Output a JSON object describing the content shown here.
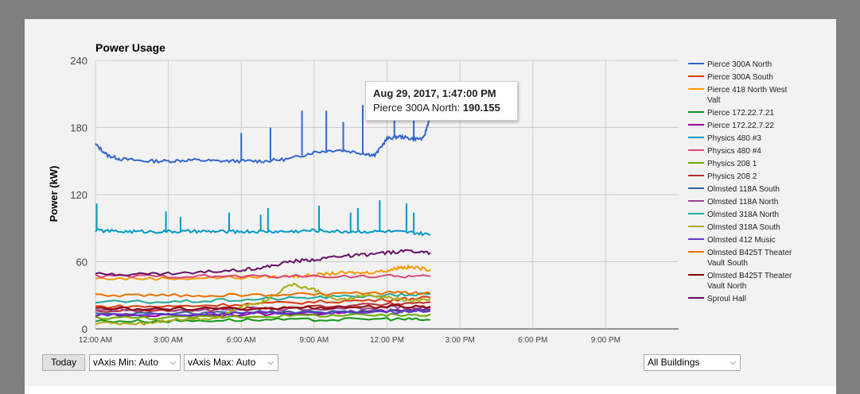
{
  "controls": {
    "today_label": "Today",
    "vaxis_min": "vAxis Min: Auto",
    "vaxis_max": "vAxis Max: Auto",
    "building": "All Buildings"
  },
  "tooltip": {
    "datetime": "Aug 29, 2017, 1:47:00 PM",
    "series": "Pierce 300A North",
    "value": "190.155"
  },
  "chart_data": {
    "type": "line",
    "title": "Power Usage",
    "ylabel": "Power (kW)",
    "xlabel": "",
    "ylim": [
      0,
      240
    ],
    "xlim_hours": [
      0,
      24
    ],
    "y_ticks": [
      0,
      60,
      120,
      180,
      240
    ],
    "x_ticks": [
      {
        "hour": 0,
        "label": "12:00 AM"
      },
      {
        "hour": 3,
        "label": "3:00 AM"
      },
      {
        "hour": 6,
        "label": "6:00 AM"
      },
      {
        "hour": 9,
        "label": "9:00 AM"
      },
      {
        "hour": 12,
        "label": "12:00 PM"
      },
      {
        "hour": 15,
        "label": "3:00 PM"
      },
      {
        "hour": 18,
        "label": "6:00 PM"
      },
      {
        "hour": 21,
        "label": "9:00 PM"
      }
    ],
    "grid": true,
    "legend_position": "right",
    "series": [
      {
        "name": "Pierce 300A North",
        "color": "#3366cc",
        "x": [
          0,
          0.5,
          1,
          2,
          3,
          4,
          5,
          6,
          7,
          8,
          9,
          10,
          11,
          11.5,
          12,
          12.5,
          13,
          13.5,
          13.78
        ],
        "y": [
          165,
          155,
          152,
          150,
          150,
          151,
          150,
          150,
          150,
          152,
          158,
          160,
          157,
          155,
          170,
          172,
          170,
          170,
          190.155
        ],
        "spikes": [
          [
            6,
            175
          ],
          [
            7.2,
            180
          ],
          [
            8.5,
            195
          ],
          [
            9.5,
            195
          ],
          [
            10.2,
            185
          ],
          [
            11,
            200
          ],
          [
            12.3,
            200
          ],
          [
            13.1,
            200
          ]
        ]
      },
      {
        "name": "Pierce 300A South",
        "color": "#dc3912",
        "x": [
          0,
          3,
          6,
          9,
          12,
          13.78
        ],
        "y": [
          20,
          20,
          22,
          24,
          26,
          28
        ]
      },
      {
        "name": "Pierce 418 North West Valt",
        "color": "#ff9900",
        "x": [
          0,
          3,
          6,
          8,
          9,
          10,
          11,
          12,
          12.5,
          13,
          13.78
        ],
        "y": [
          45,
          45,
          46,
          47,
          48,
          50,
          50,
          52,
          55,
          55,
          53
        ]
      },
      {
        "name": "Pierce 172.22.7.21",
        "color": "#109618",
        "x": [
          0,
          3,
          6,
          9,
          12,
          13.78
        ],
        "y": [
          7,
          7,
          8,
          8,
          9,
          8
        ]
      },
      {
        "name": "Pierce 172.22.7.22",
        "color": "#990099",
        "x": [
          0,
          3,
          6,
          9,
          12,
          13.78
        ],
        "y": [
          12,
          12,
          13,
          14,
          16,
          17
        ]
      },
      {
        "name": "Physics 480 #3",
        "color": "#0099c6",
        "x": [
          0,
          1,
          2,
          3,
          4,
          5,
          6,
          7,
          8,
          9,
          10,
          11,
          12,
          13,
          13.78
        ],
        "y": [
          88,
          87,
          87,
          87,
          87,
          87,
          87,
          87,
          87,
          88,
          87,
          87,
          87,
          86,
          84
        ],
        "spikes": [
          [
            0.05,
            112
          ],
          [
            2.9,
            105
          ],
          [
            3.5,
            100
          ],
          [
            5.5,
            104
          ],
          [
            6.8,
            102
          ],
          [
            7.1,
            108
          ],
          [
            9.2,
            110
          ],
          [
            10.5,
            104
          ],
          [
            10.8,
            108
          ],
          [
            11.7,
            115
          ],
          [
            12.8,
            112
          ],
          [
            13.1,
            104
          ]
        ]
      },
      {
        "name": "Physics 480 #4",
        "color": "#dd4477",
        "x": [
          0,
          3,
          6,
          9,
          12,
          13.78
        ],
        "y": [
          47,
          47,
          47,
          47,
          47,
          47
        ]
      },
      {
        "name": "Physics 208 1",
        "color": "#66aa00",
        "x": [
          0,
          3,
          6,
          9,
          12,
          13.78
        ],
        "y": [
          10,
          10,
          11,
          12,
          12,
          13
        ]
      },
      {
        "name": "Physics 208 2",
        "color": "#b82e2e",
        "x": [
          0,
          3,
          6,
          9,
          12,
          13.78
        ],
        "y": [
          16,
          16,
          18,
          20,
          22,
          24
        ]
      },
      {
        "name": "Olmsted 118A South",
        "color": "#316395",
        "x": [
          0,
          3,
          6,
          9,
          12,
          13.78
        ],
        "y": [
          14,
          14,
          15,
          15,
          16,
          16
        ]
      },
      {
        "name": "Olmsted 118A North",
        "color": "#994499",
        "x": [
          0,
          3,
          6,
          9,
          12,
          13.78
        ],
        "y": [
          17,
          17,
          18,
          18,
          19,
          19
        ]
      },
      {
        "name": "Olmsted 318A North",
        "color": "#22aa99",
        "x": [
          0,
          3,
          6,
          9,
          12,
          13.78
        ],
        "y": [
          24,
          24,
          26,
          28,
          30,
          31
        ]
      },
      {
        "name": "Olmsted 318A South",
        "color": "#aaaa11",
        "x": [
          0,
          2,
          3,
          5,
          6,
          7,
          8,
          9,
          10,
          11,
          12,
          13,
          13.78
        ],
        "y": [
          5,
          5,
          8,
          10,
          20,
          25,
          40,
          35,
          25,
          30,
          28,
          25,
          26
        ]
      },
      {
        "name": "Olmsted 412 Music",
        "color": "#6633cc",
        "x": [
          0,
          3,
          6,
          9,
          12,
          13.78
        ],
        "y": [
          13,
          13,
          14,
          15,
          15,
          16
        ]
      },
      {
        "name": "Olmsted B425T Theater Vault South",
        "color": "#e67300",
        "x": [
          0,
          3,
          6,
          9,
          12,
          13.78
        ],
        "y": [
          30,
          30,
          30,
          31,
          32,
          32
        ]
      },
      {
        "name": "Olmsted B425T Theater Vault North",
        "color": "#8b0707",
        "x": [
          0,
          3,
          6,
          9,
          12,
          13.78
        ],
        "y": [
          18,
          18,
          18,
          19,
          20,
          20
        ]
      },
      {
        "name": "Sproul Hall",
        "color": "#651067",
        "x": [
          0,
          2,
          4,
          6,
          7,
          8,
          9,
          10,
          11,
          12,
          13,
          13.78
        ],
        "y": [
          49,
          49,
          50,
          53,
          55,
          60,
          62,
          65,
          66,
          68,
          70,
          68
        ]
      }
    ]
  }
}
